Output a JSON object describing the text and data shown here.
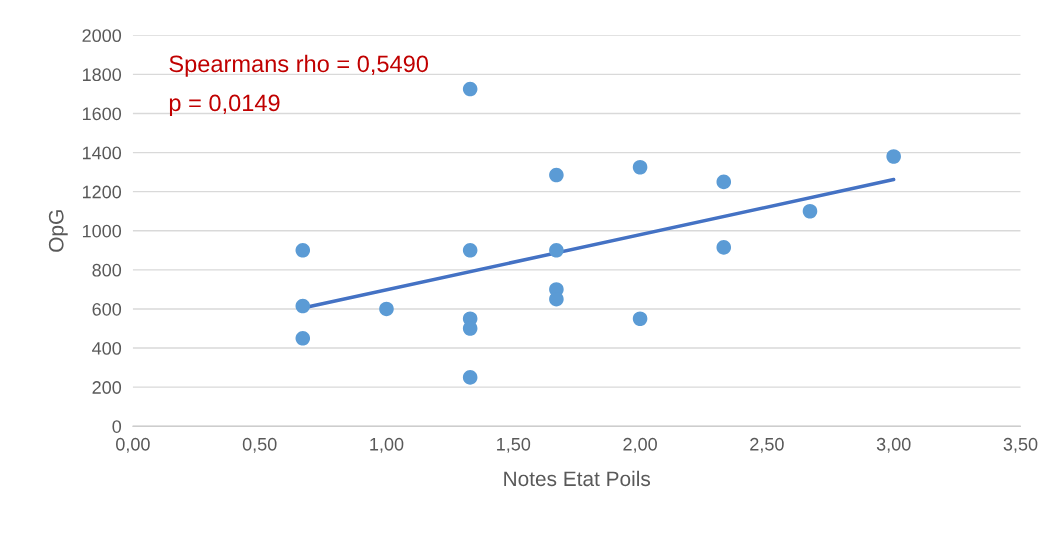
{
  "chart_data": {
    "type": "scatter",
    "xlabel": "Notes Etat Poils",
    "ylabel": "OpG",
    "annotations": [
      "Spearmans rho = 0,5490",
      "p = 0,0149"
    ],
    "series": [
      {
        "color": "#5b9bd5",
        "marker": "circle",
        "x": [
          0.67,
          0.67,
          0.67,
          1.0,
          1.33,
          1.33,
          1.33,
          1.33,
          1.33,
          1.67,
          1.67,
          1.67,
          1.67,
          2.0,
          2.0,
          2.33,
          2.33,
          2.67,
          3.0
        ],
        "values": [
          900,
          615,
          450,
          600,
          1725,
          900,
          550,
          500,
          250,
          1285,
          900,
          700,
          650,
          1325,
          550,
          1250,
          915,
          1100,
          1380
        ]
      },
      {
        "type": "line",
        "color": "#4472c4",
        "x": [
          0.67,
          3.0
        ],
        "values": [
          605,
          1262
        ]
      }
    ],
    "xlim": [
      0,
      3.5
    ],
    "ylim": [
      0,
      2000
    ],
    "xticks": [
      {
        "value": 0,
        "label": "0,00"
      },
      {
        "value": 0.5,
        "label": "0,50"
      },
      {
        "value": 1,
        "label": "1,00"
      },
      {
        "value": 1.5,
        "label": "1,50"
      },
      {
        "value": 2,
        "label": "2,00"
      },
      {
        "value": 2.5,
        "label": "2,50"
      },
      {
        "value": 3,
        "label": "3,00"
      },
      {
        "value": 3.5,
        "label": "3,50"
      }
    ],
    "yticks": [
      0,
      200,
      400,
      600,
      800,
      1000,
      1200,
      1400,
      1600,
      1800,
      2000
    ],
    "grid": "y"
  }
}
